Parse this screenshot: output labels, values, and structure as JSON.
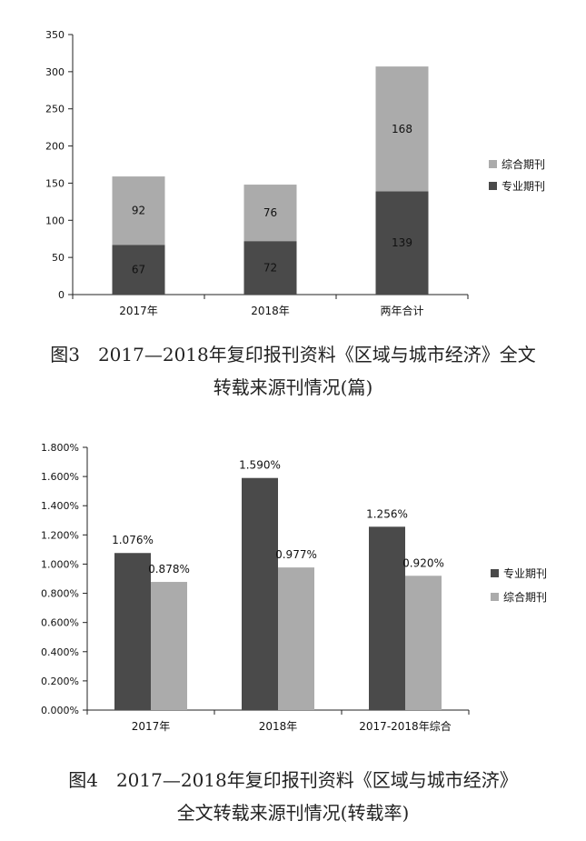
{
  "chart_data": [
    {
      "type": "bar",
      "stacked": true,
      "title": "",
      "xlabel": "",
      "ylabel": "",
      "categories": [
        "2017年",
        "2018年",
        "两年合计"
      ],
      "series": [
        {
          "name": "专业期刊",
          "values": [
            67,
            72,
            139
          ],
          "color": "#4a4a4a"
        },
        {
          "name": "综合期刊",
          "values": [
            92,
            76,
            168
          ],
          "color": "#ababab"
        }
      ],
      "ylim": [
        0,
        350
      ],
      "yticks": [
        0,
        50,
        100,
        150,
        200,
        250,
        300,
        350
      ],
      "legend_order": [
        1,
        0
      ],
      "legend_position": "right",
      "grid": false
    },
    {
      "type": "bar",
      "stacked": false,
      "title": "",
      "xlabel": "",
      "ylabel": "",
      "categories": [
        "2017年",
        "2018年",
        "2017-2018年综合"
      ],
      "series": [
        {
          "name": "专业期刊",
          "values": [
            1.076,
            1.59,
            1.256
          ],
          "labels": [
            "1.076%",
            "1.590%",
            "1.256%"
          ],
          "color": "#4a4a4a"
        },
        {
          "name": "综合期刊",
          "values": [
            0.878,
            0.977,
            0.92
          ],
          "labels": [
            "0.878%",
            "0.977%",
            "0.920%"
          ],
          "color": "#ababab"
        }
      ],
      "ylim": [
        0,
        1.8
      ],
      "yticks": [
        0,
        0.2,
        0.4,
        0.6,
        0.8,
        1.0,
        1.2,
        1.4,
        1.6,
        1.8
      ],
      "ytick_labels": [
        "0.000%",
        "0.200%",
        "0.400%",
        "0.600%",
        "0.800%",
        "1.000%",
        "1.200%",
        "1.400%",
        "1.600%",
        "1.800%"
      ],
      "legend_order": [
        0,
        1
      ],
      "legend_position": "right",
      "grid": false
    }
  ],
  "captions": {
    "fig3": {
      "line1": "图3　2017—2018年复印报刊资料《区域与城市经济》全文",
      "line2": "转载来源刊情况(篇)"
    },
    "fig4": {
      "line1": "图4　2017—2018年复印报刊资料《区域与城市经济》",
      "line2": "全文转载来源刊情况(转载率)"
    }
  }
}
